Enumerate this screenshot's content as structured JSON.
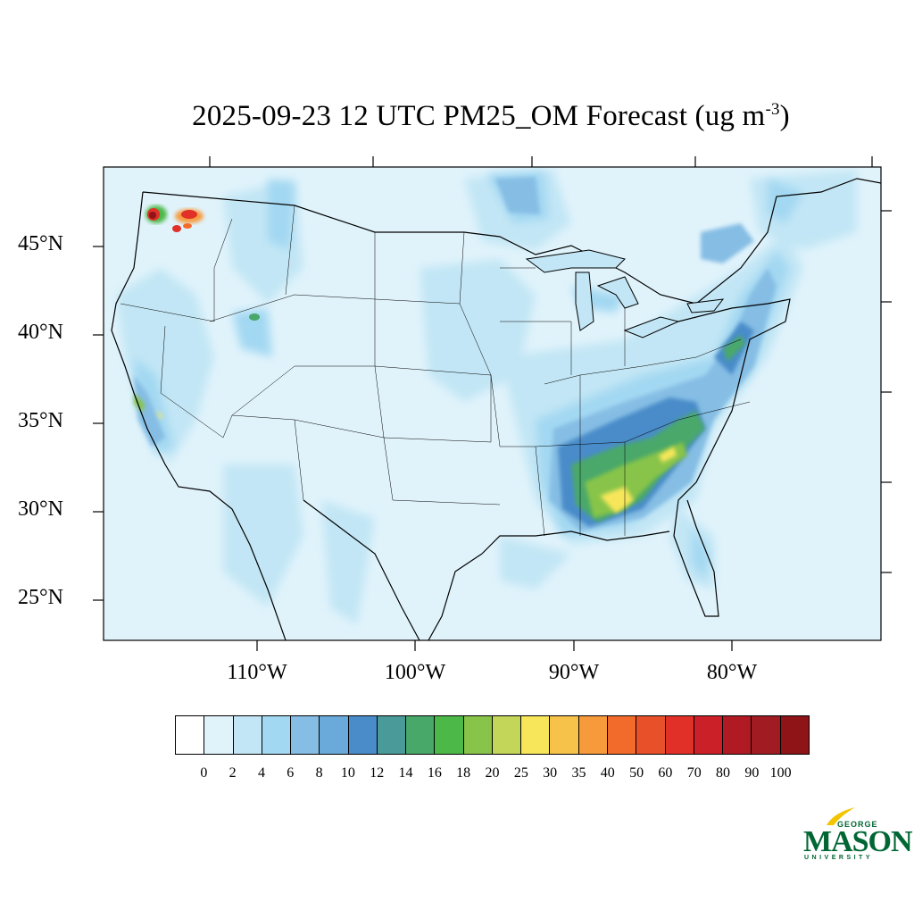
{
  "title": {
    "main": "2025-09-23 12 UTC PM25_OM Forecast (ug m",
    "superscript": "-3",
    "close": ")"
  },
  "axes": {
    "lat_labels": [
      "45°N",
      "40°N",
      "35°N",
      "30°N",
      "25°N"
    ],
    "lon_labels": [
      "110°W",
      "100°W",
      "90°W",
      "80°W"
    ]
  },
  "legend": {
    "levels": [
      "0",
      "2",
      "4",
      "6",
      "8",
      "10",
      "12",
      "14",
      "16",
      "18",
      "20",
      "25",
      "30",
      "35",
      "40",
      "50",
      "60",
      "70",
      "80",
      "90",
      "100"
    ],
    "colors": [
      "#ffffff",
      "#e0f3fb",
      "#c2e6f5",
      "#a3d8f2",
      "#85bde4",
      "#6aaadb",
      "#4a8cc9",
      "#4a9a9a",
      "#48a86a",
      "#4cb848",
      "#88c44a",
      "#c4d65a",
      "#f7e65a",
      "#f7c24a",
      "#f79a3c",
      "#f26b2a",
      "#e8502a",
      "#e03028",
      "#cc2028",
      "#b01a22",
      "#a01c22",
      "#8e1418"
    ]
  },
  "logo": {
    "top": "GEORGE",
    "main": "MASON",
    "bottom": "UNIVERSITY"
  }
}
